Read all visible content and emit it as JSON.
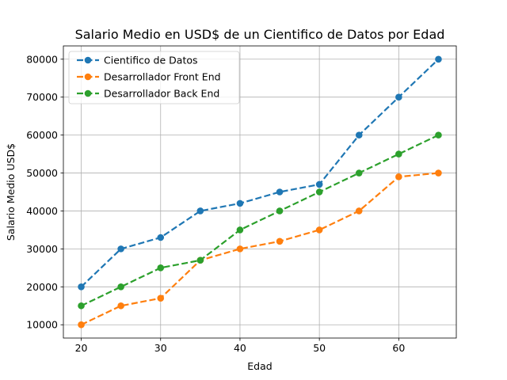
{
  "chart_data": {
    "type": "line",
    "title": "Salario Medio en USD$ de un Cientifico de Datos por Edad",
    "xlabel": "Edad",
    "ylabel": "Salario Medio USD$",
    "x": [
      20,
      25,
      30,
      35,
      40,
      45,
      50,
      55,
      60,
      65
    ],
    "series": [
      {
        "name": "Cientifico de Datos",
        "color": "#1f77b4",
        "values": [
          20000,
          30000,
          33000,
          40000,
          42000,
          45000,
          47000,
          60000,
          70000,
          80000
        ]
      },
      {
        "name": "Desarrollador Front End",
        "color": "#ff7f0e",
        "values": [
          10000,
          15000,
          17000,
          27000,
          30000,
          32000,
          35000,
          40000,
          49000,
          50000
        ]
      },
      {
        "name": "Desarrollador Back End",
        "color": "#2ca02c",
        "values": [
          15000,
          20000,
          25000,
          27000,
          35000,
          40000,
          45000,
          50000,
          55000,
          60000
        ]
      }
    ],
    "xlim": [
      17.75,
      67.25
    ],
    "ylim": [
      6500,
      83500
    ],
    "xticks": [
      20,
      30,
      40,
      50,
      60
    ],
    "yticks": [
      10000,
      20000,
      30000,
      40000,
      50000,
      60000,
      70000,
      80000
    ],
    "xtick_labels": [
      "20",
      "30",
      "40",
      "50",
      "60"
    ],
    "ytick_labels": [
      "10000",
      "20000",
      "30000",
      "40000",
      "50000",
      "60000",
      "70000",
      "80000"
    ],
    "grid": true,
    "line_style": "dashed",
    "marker": "circle",
    "legend_position": "top-left"
  }
}
